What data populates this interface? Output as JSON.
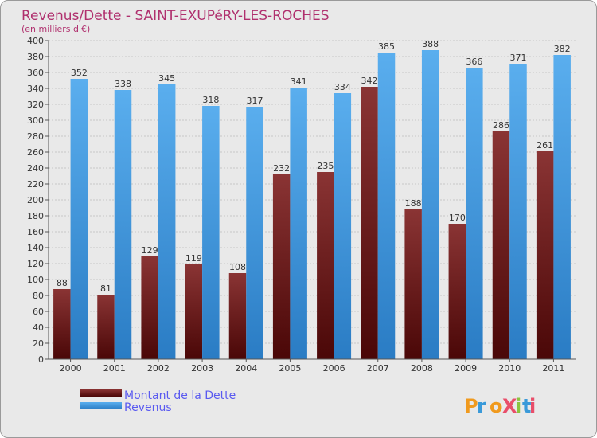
{
  "chart_data": {
    "type": "bar",
    "title": "Revenus/Dette - SAINT-EXUPéRY-LES-ROCHES",
    "subtitle": "(en milliers d'€)",
    "xlabel": "",
    "ylabel": "",
    "categories": [
      "2000",
      "2001",
      "2002",
      "2003",
      "2004",
      "2005",
      "2006",
      "2007",
      "2008",
      "2009",
      "2010",
      "2011"
    ],
    "series": [
      {
        "name": "Montant de la Dette",
        "values": [
          88,
          81,
          129,
          119,
          108,
          232,
          235,
          342,
          188,
          170,
          286,
          261
        ]
      },
      {
        "name": "Revenus",
        "values": [
          352,
          338,
          345,
          318,
          317,
          341,
          334,
          385,
          388,
          366,
          371,
          382
        ]
      }
    ],
    "ylim": [
      0,
      400
    ],
    "ytick_step": 20,
    "grid": true,
    "legend_position": "bottom-left"
  },
  "colors": {
    "title": "#b0306e",
    "legend_text": "#5a5af0",
    "dette_bar": "#7e2a2a",
    "dette_dark": "#4a0a0a",
    "revenus_bar": "#52a4e8",
    "revenus_dark": "#2a7cc4",
    "grid": "#c8c8c8"
  },
  "logo": {
    "text": "ProXiti"
  }
}
